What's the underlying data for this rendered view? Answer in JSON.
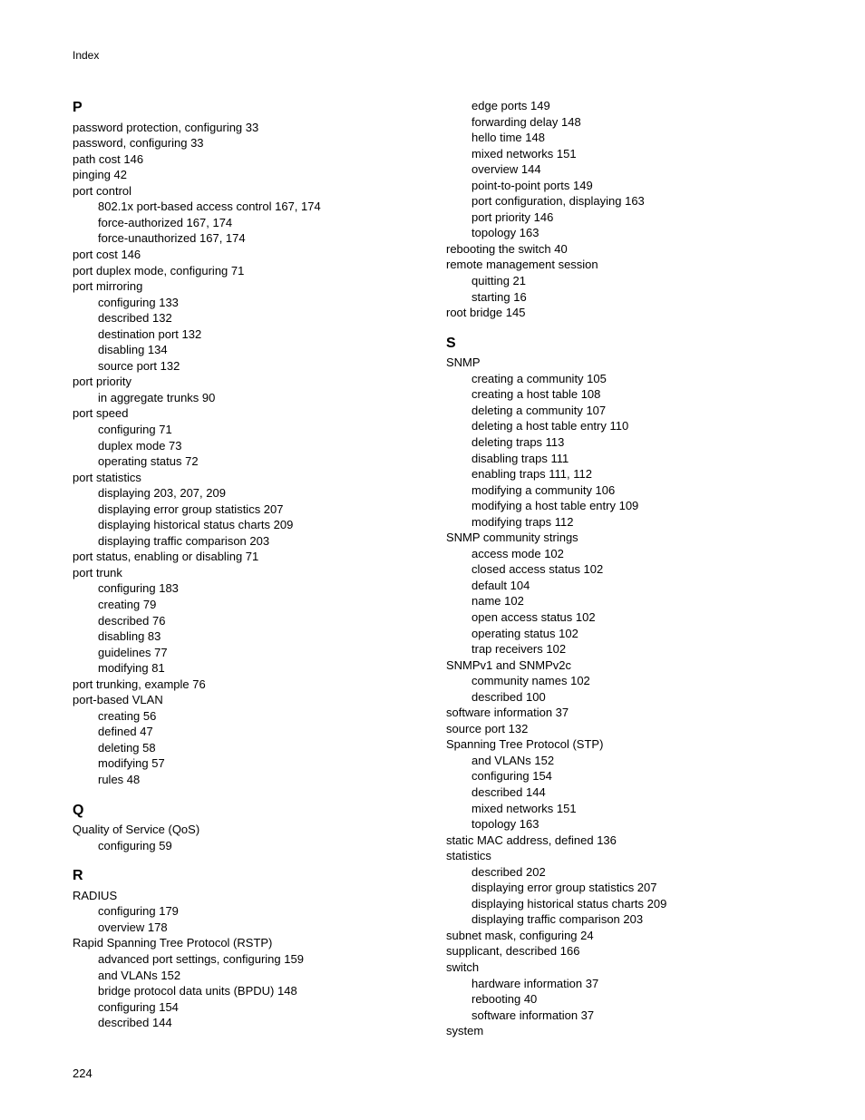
{
  "running_header": "Index",
  "page_number": "224",
  "left_column": {
    "sections": [
      {
        "letter": "P",
        "entries": [
          {
            "level": 0,
            "text": "password protection, configuring 33"
          },
          {
            "level": 0,
            "text": "password, configuring 33"
          },
          {
            "level": 0,
            "text": "path cost 146"
          },
          {
            "level": 0,
            "text": "pinging 42"
          },
          {
            "level": 0,
            "text": "port control"
          },
          {
            "level": 1,
            "text": "802.1x port-based access control 167, 174"
          },
          {
            "level": 1,
            "text": "force-authorized 167, 174"
          },
          {
            "level": 1,
            "text": "force-unauthorized 167, 174"
          },
          {
            "level": 0,
            "text": "port cost 146"
          },
          {
            "level": 0,
            "text": "port duplex mode, configuring 71"
          },
          {
            "level": 0,
            "text": "port mirroring"
          },
          {
            "level": 1,
            "text": "configuring 133"
          },
          {
            "level": 1,
            "text": "described 132"
          },
          {
            "level": 1,
            "text": "destination port 132"
          },
          {
            "level": 1,
            "text": "disabling 134"
          },
          {
            "level": 1,
            "text": "source port 132"
          },
          {
            "level": 0,
            "text": "port priority"
          },
          {
            "level": 1,
            "text": "in aggregate trunks 90"
          },
          {
            "level": 0,
            "text": "port speed"
          },
          {
            "level": 1,
            "text": "configuring 71"
          },
          {
            "level": 1,
            "text": "duplex mode 73"
          },
          {
            "level": 1,
            "text": "operating status 72"
          },
          {
            "level": 0,
            "text": "port statistics"
          },
          {
            "level": 1,
            "text": "displaying 203, 207, 209"
          },
          {
            "level": 1,
            "text": "displaying error group statistics 207"
          },
          {
            "level": 1,
            "text": "displaying historical status charts 209"
          },
          {
            "level": 1,
            "text": "displaying traffic comparison 203"
          },
          {
            "level": 0,
            "text": "port status, enabling or disabling 71"
          },
          {
            "level": 0,
            "text": "port trunk"
          },
          {
            "level": 1,
            "text": "configuring 183"
          },
          {
            "level": 1,
            "text": "creating 79"
          },
          {
            "level": 1,
            "text": "described 76"
          },
          {
            "level": 1,
            "text": "disabling 83"
          },
          {
            "level": 1,
            "text": "guidelines 77"
          },
          {
            "level": 1,
            "text": "modifying 81"
          },
          {
            "level": 0,
            "text": "port trunking, example 76"
          },
          {
            "level": 0,
            "text": "port-based VLAN"
          },
          {
            "level": 1,
            "text": "creating 56"
          },
          {
            "level": 1,
            "text": "defined 47"
          },
          {
            "level": 1,
            "text": "deleting 58"
          },
          {
            "level": 1,
            "text": "modifying 57"
          },
          {
            "level": 1,
            "text": "rules 48"
          }
        ]
      },
      {
        "letter": "Q",
        "entries": [
          {
            "level": 0,
            "text": "Quality of Service (QoS)"
          },
          {
            "level": 1,
            "text": "configuring 59"
          }
        ]
      },
      {
        "letter": "R",
        "entries": [
          {
            "level": 0,
            "text": "RADIUS"
          },
          {
            "level": 1,
            "text": "configuring 179"
          },
          {
            "level": 1,
            "text": "overview 178"
          },
          {
            "level": 0,
            "text": "Rapid Spanning Tree Protocol (RSTP)"
          },
          {
            "level": 1,
            "text": "advanced port settings, configuring 159"
          },
          {
            "level": 1,
            "text": "and VLANs 152"
          },
          {
            "level": 1,
            "text": "bridge protocol data units (BPDU) 148"
          },
          {
            "level": 1,
            "text": "configuring 154"
          },
          {
            "level": 1,
            "text": "described 144"
          }
        ]
      }
    ]
  },
  "right_column": {
    "sections": [
      {
        "letter": "",
        "entries": [
          {
            "level": 1,
            "text": "edge ports 149"
          },
          {
            "level": 1,
            "text": "forwarding delay 148"
          },
          {
            "level": 1,
            "text": "hello time 148"
          },
          {
            "level": 1,
            "text": "mixed networks 151"
          },
          {
            "level": 1,
            "text": "overview 144"
          },
          {
            "level": 1,
            "text": "point-to-point ports 149"
          },
          {
            "level": 1,
            "text": "port configuration, displaying 163"
          },
          {
            "level": 1,
            "text": "port priority 146"
          },
          {
            "level": 1,
            "text": "topology 163"
          },
          {
            "level": 0,
            "text": "rebooting the switch 40"
          },
          {
            "level": 0,
            "text": "remote management session"
          },
          {
            "level": 1,
            "text": "quitting 21"
          },
          {
            "level": 1,
            "text": "starting 16"
          },
          {
            "level": 0,
            "text": "root bridge 145"
          }
        ]
      },
      {
        "letter": "S",
        "entries": [
          {
            "level": 0,
            "text": "SNMP"
          },
          {
            "level": 1,
            "text": "creating a community 105"
          },
          {
            "level": 1,
            "text": "creating a host table 108"
          },
          {
            "level": 1,
            "text": "deleting a community 107"
          },
          {
            "level": 1,
            "text": "deleting a host table entry 110"
          },
          {
            "level": 1,
            "text": "deleting traps 113"
          },
          {
            "level": 1,
            "text": "disabling traps 111"
          },
          {
            "level": 1,
            "text": "enabling traps 111, 112"
          },
          {
            "level": 1,
            "text": "modifying a community 106"
          },
          {
            "level": 1,
            "text": "modifying a host table entry 109"
          },
          {
            "level": 1,
            "text": "modifying traps 112"
          },
          {
            "level": 0,
            "text": "SNMP community strings"
          },
          {
            "level": 1,
            "text": "access mode 102"
          },
          {
            "level": 1,
            "text": "closed access status 102"
          },
          {
            "level": 1,
            "text": "default 104"
          },
          {
            "level": 1,
            "text": "name 102"
          },
          {
            "level": 1,
            "text": "open access status 102"
          },
          {
            "level": 1,
            "text": "operating status 102"
          },
          {
            "level": 1,
            "text": "trap receivers 102"
          },
          {
            "level": 0,
            "text": "SNMPv1 and SNMPv2c"
          },
          {
            "level": 1,
            "text": "community names 102"
          },
          {
            "level": 1,
            "text": "described 100"
          },
          {
            "level": 0,
            "text": "software information 37"
          },
          {
            "level": 0,
            "text": "source port 132"
          },
          {
            "level": 0,
            "text": "Spanning Tree Protocol (STP)"
          },
          {
            "level": 1,
            "text": "and VLANs 152"
          },
          {
            "level": 1,
            "text": "configuring 154"
          },
          {
            "level": 1,
            "text": "described 144"
          },
          {
            "level": 1,
            "text": "mixed networks 151"
          },
          {
            "level": 1,
            "text": "topology 163"
          },
          {
            "level": 0,
            "text": "static MAC address, defined 136"
          },
          {
            "level": 0,
            "text": "statistics"
          },
          {
            "level": 1,
            "text": "described 202"
          },
          {
            "level": 1,
            "text": "displaying error group statistics 207"
          },
          {
            "level": 1,
            "text": "displaying historical status charts 209"
          },
          {
            "level": 1,
            "text": "displaying traffic comparison 203"
          },
          {
            "level": 0,
            "text": "subnet mask, configuring 24"
          },
          {
            "level": 0,
            "text": "supplicant, described 166"
          },
          {
            "level": 0,
            "text": "switch"
          },
          {
            "level": 1,
            "text": "hardware information 37"
          },
          {
            "level": 1,
            "text": "rebooting 40"
          },
          {
            "level": 1,
            "text": "software information 37"
          },
          {
            "level": 0,
            "text": "system"
          }
        ]
      }
    ]
  }
}
